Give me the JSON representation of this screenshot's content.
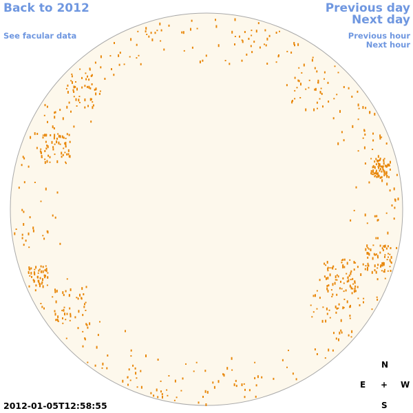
{
  "header": {
    "back": "Back to 2012",
    "facular": "See facular data",
    "previous_day": "Previous day",
    "next_day": "Next day",
    "previous_hour": "Previous hour",
    "next_hour": "Next hour"
  },
  "timestamp": "2012-01-05T12:58:55",
  "compass": {
    "north": "N",
    "east": "E",
    "center": "+",
    "west": "W",
    "south": "S"
  }
}
